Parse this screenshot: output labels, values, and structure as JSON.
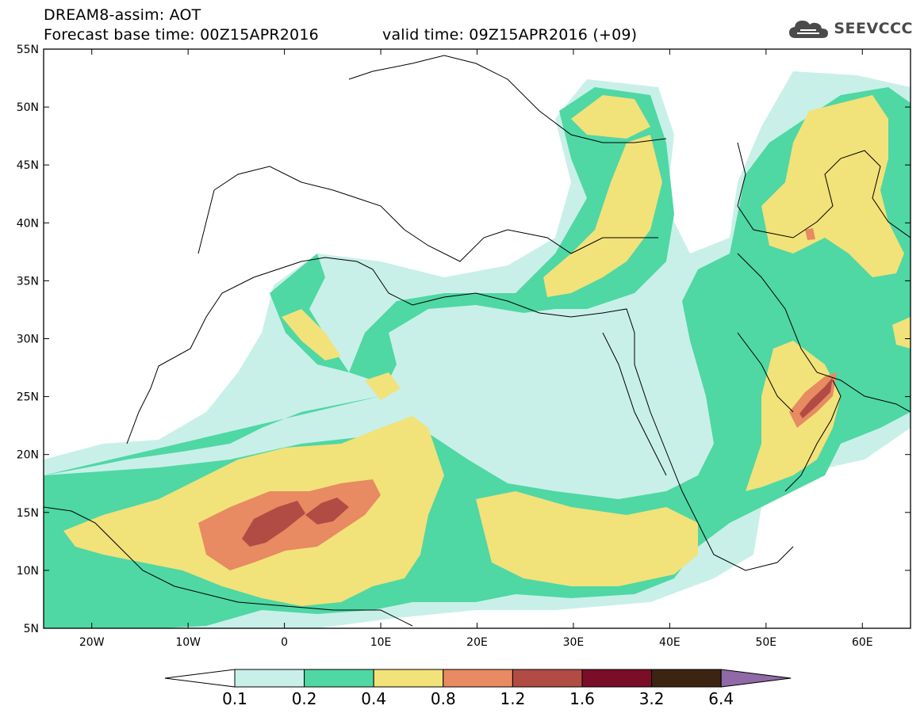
{
  "title": {
    "line1": "DREAM8-assim: AOT",
    "line2": "Forecast base time: 00Z15APR2016",
    "valid": "valid time: 09Z15APR2016 (+09)"
  },
  "logo": {
    "text": "SEEVCCC",
    "icon": "cloud-icon"
  },
  "map": {
    "lon_range": [
      -25,
      65
    ],
    "lat_range": [
      5,
      55
    ],
    "lat_ticks": [
      "5N",
      "10N",
      "15N",
      "20N",
      "25N",
      "30N",
      "35N",
      "40N",
      "45N",
      "50N",
      "55N"
    ],
    "lon_ticks": [
      "20W",
      "10W",
      "0",
      "10E",
      "20E",
      "30E",
      "40E",
      "50E",
      "60E"
    ]
  },
  "colorbar": {
    "labels": [
      "0.1",
      "0.2",
      "0.4",
      "0.8",
      "1.2",
      "1.6",
      "3.2",
      "6.4"
    ],
    "colors": [
      "#c8f0e8",
      "#4fd7a4",
      "#f2e27a",
      "#e88a62",
      "#b14c44",
      "#7a0d27",
      "#3b2412"
    ],
    "under_color": "#ffffff",
    "over_color": "#8f6aa6"
  }
}
